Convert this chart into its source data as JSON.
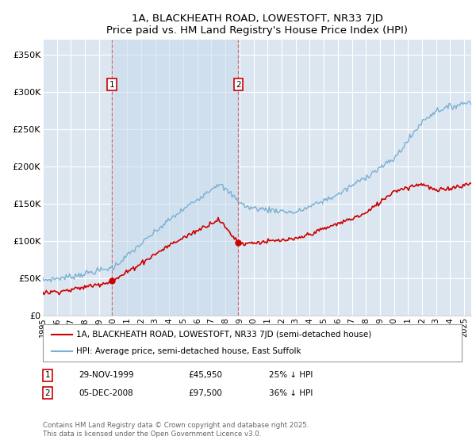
{
  "title": "1A, BLACKHEATH ROAD, LOWESTOFT, NR33 7JD",
  "subtitle": "Price paid vs. HM Land Registry's House Price Index (HPI)",
  "ylabel_ticks": [
    "£0",
    "£50K",
    "£100K",
    "£150K",
    "£200K",
    "£250K",
    "£300K",
    "£350K"
  ],
  "ytick_vals": [
    0,
    50000,
    100000,
    150000,
    200000,
    250000,
    300000,
    350000
  ],
  "ylim": [
    0,
    370000
  ],
  "xlim_start": 1995.0,
  "xlim_end": 2025.5,
  "legend_line1": "1A, BLACKHEATH ROAD, LOWESTOFT, NR33 7JD (semi-detached house)",
  "legend_line2": "HPI: Average price, semi-detached house, East Suffolk",
  "marker1_date": 1999.92,
  "marker1_price": 45950,
  "marker1_label": "1",
  "marker2_date": 2008.92,
  "marker2_price": 97500,
  "marker2_label": "2",
  "red_color": "#cc0000",
  "blue_color": "#7ab0d4",
  "background_color": "#dce6f1",
  "grid_color": "#ffffff",
  "row1_date": "29-NOV-1999",
  "row1_price": "£45,950",
  "row1_pct": "25% ↓ HPI",
  "row2_date": "05-DEC-2008",
  "row2_price": "£97,500",
  "row2_pct": "36% ↓ HPI",
  "footer": "Contains HM Land Registry data © Crown copyright and database right 2025.\nThis data is licensed under the Open Government Licence v3.0."
}
